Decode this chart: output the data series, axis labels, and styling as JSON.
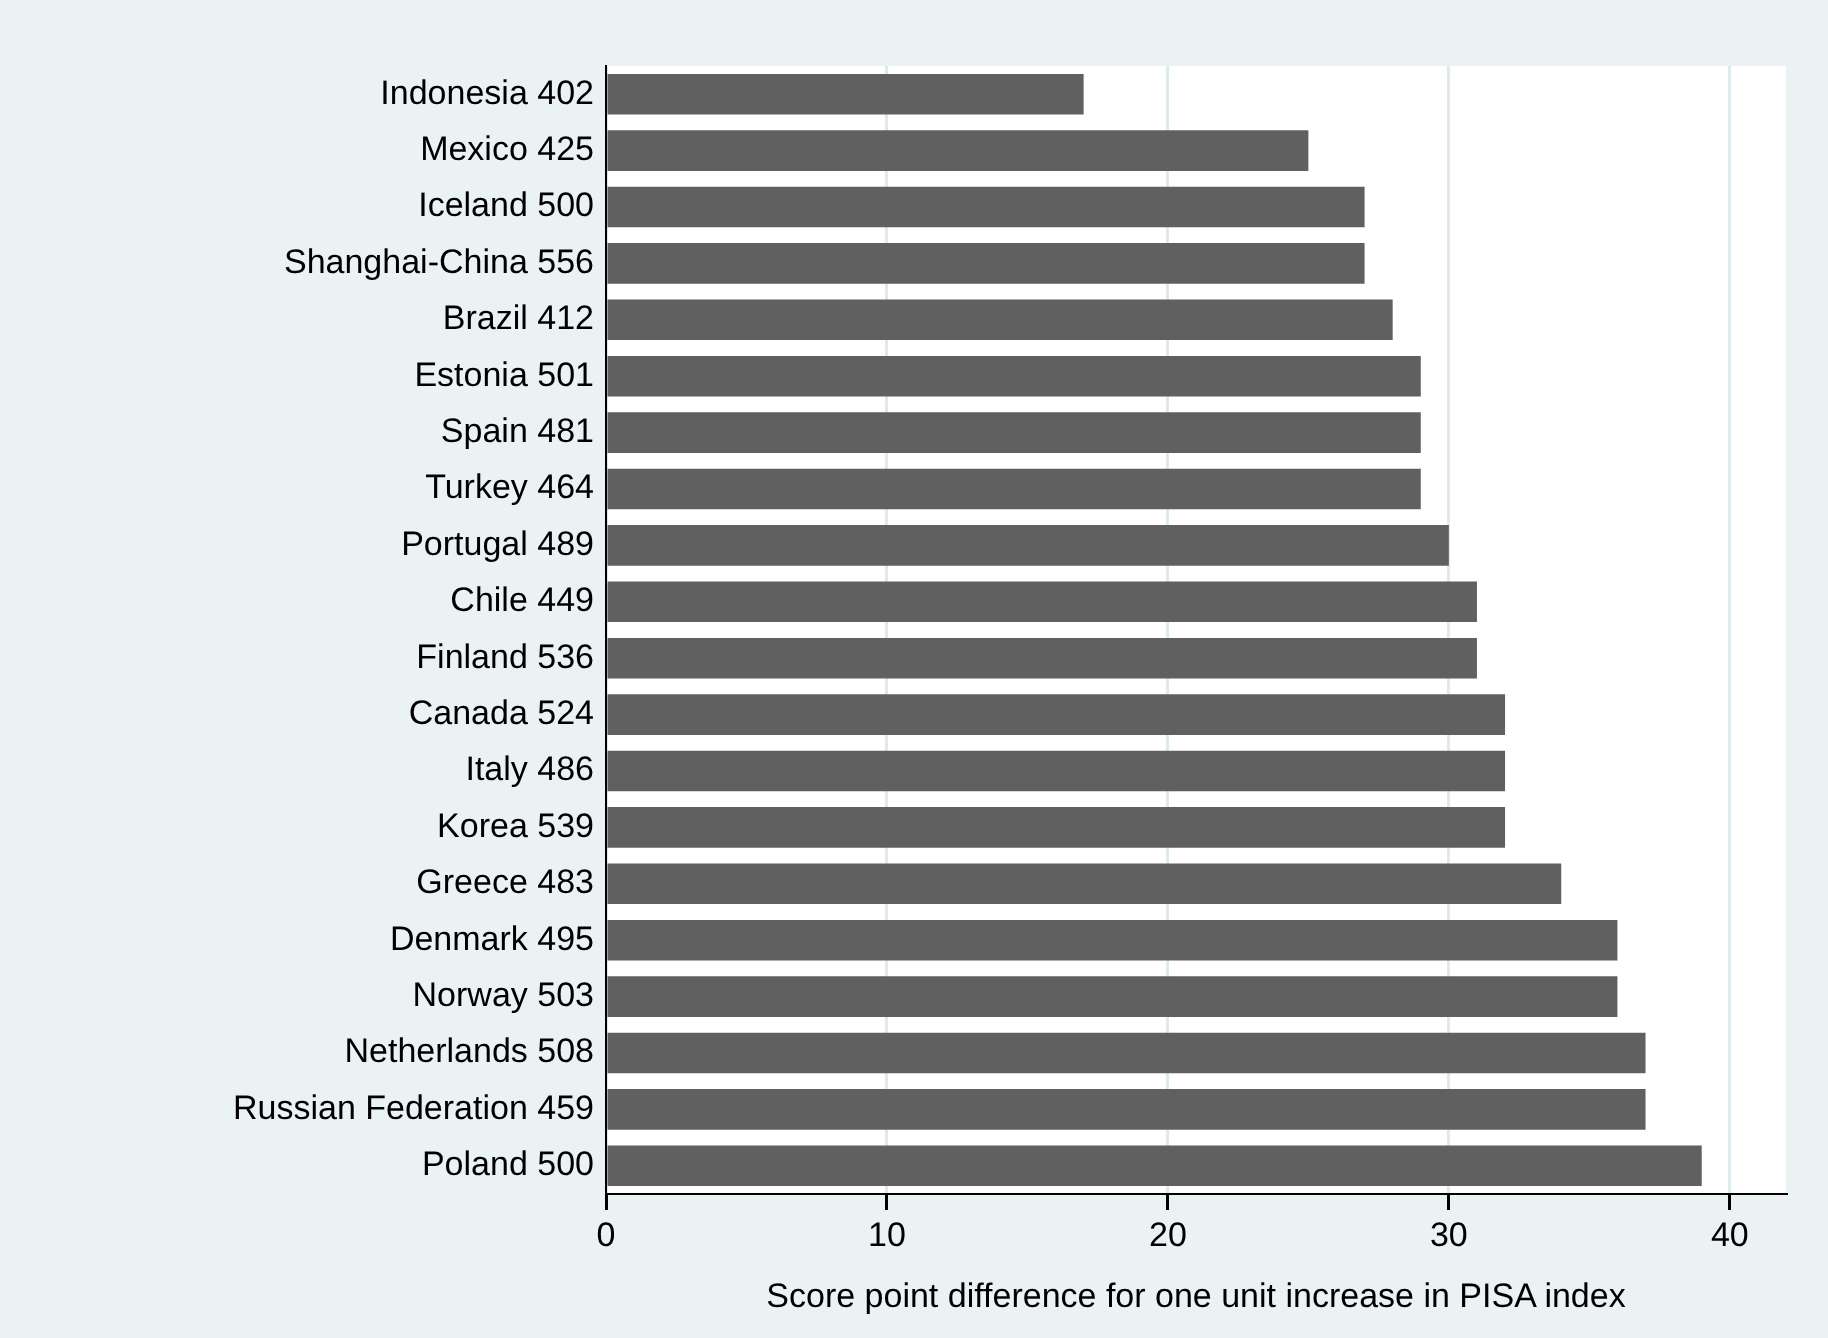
{
  "chart_data": {
    "type": "bar",
    "orientation": "horizontal",
    "xlabel": "Score point difference for one unit increase in PISA index",
    "categories": [
      "Indonesia 402",
      "Mexico 425",
      "Iceland 500",
      "Shanghai-China 556",
      "Brazil 412",
      "Estonia 501",
      "Spain 481",
      "Turkey 464",
      "Portugal 489",
      "Chile 449",
      "Finland 536",
      "Canada 524",
      "Italy 486",
      "Korea 539",
      "Greece 483",
      "Denmark 495",
      "Norway 503",
      "Netherlands 508",
      "Russian Federation 459",
      "Poland 500"
    ],
    "values": [
      17,
      25,
      27,
      27,
      28,
      29,
      29,
      29,
      30,
      31,
      31,
      32,
      32,
      32,
      34,
      36,
      36,
      37,
      37,
      39
    ],
    "color": "#606060",
    "xlim": [
      0,
      42
    ],
    "xticks": [
      0,
      10,
      20,
      30,
      40
    ],
    "grid": "x",
    "legend": false
  }
}
